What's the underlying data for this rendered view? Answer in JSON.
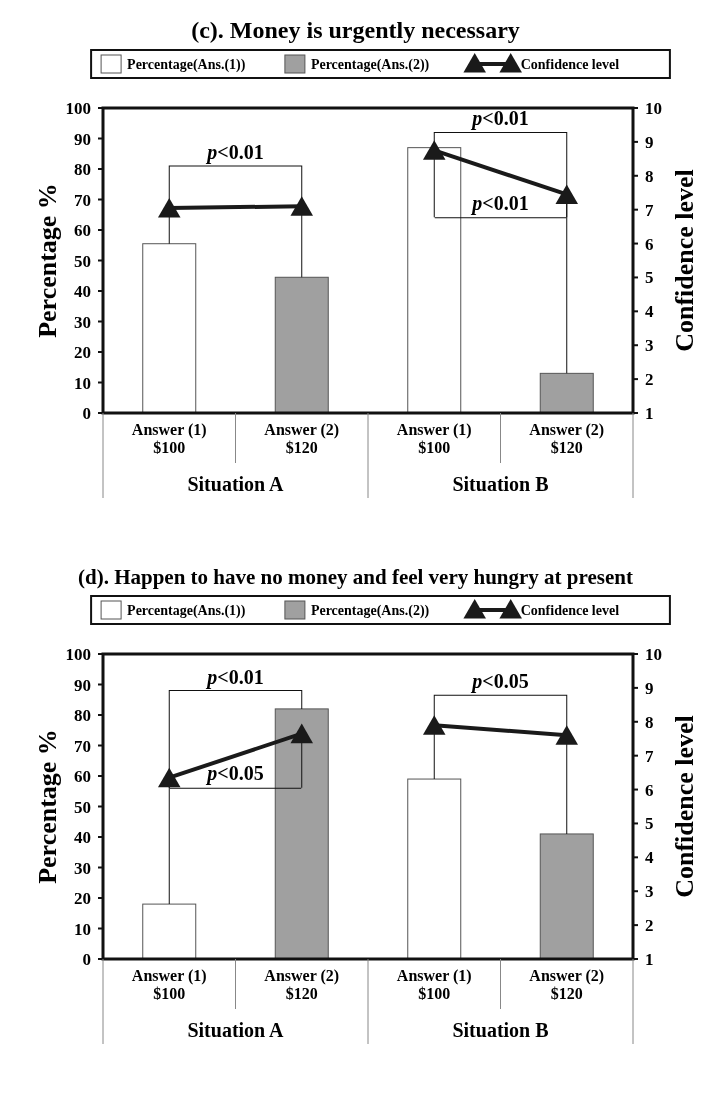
{
  "chart_data": [
    {
      "type": "bar",
      "title": "(c). Money is urgently necessary",
      "categories": [
        "Answer (1)\n$100",
        "Answer (2)\n$120",
        "Answer (1)\n$100",
        "Answer (2)\n$120"
      ],
      "series": [
        {
          "name": "Percentage(Ans.(1))",
          "color": "#ffffff",
          "values": [
            55.5,
            null,
            87,
            null
          ]
        },
        {
          "name": "Percentage(Ans.(2))",
          "color": "#a0a0a0",
          "values": [
            null,
            44.5,
            null,
            13
          ]
        },
        {
          "name": "Confidence level",
          "type": "line",
          "axis": "y2",
          "color": "#1a1a1a",
          "marker": "triangle",
          "values": [
            7.05,
            7.1,
            null,
            null
          ]
        },
        {
          "type": "line",
          "axis": "y2",
          "color": "#1a1a1a",
          "marker": "triangle",
          "values": [
            null,
            null,
            8.75,
            7.45
          ]
        }
      ],
      "ylabel": "Percentage %",
      "y2label": "Confidence level",
      "ylim": [
        0,
        100
      ],
      "yticks": [
        0,
        10,
        20,
        30,
        40,
        50,
        60,
        70,
        80,
        90,
        100
      ],
      "y2lim": [
        1,
        10
      ],
      "y2ticks": [
        1,
        2,
        3,
        4,
        5,
        6,
        7,
        8,
        9,
        10
      ],
      "legend": "top",
      "grid": false,
      "annotations": [
        "Situation A",
        "Situation B",
        "p<0.01",
        "p<0.01",
        "p<0.01"
      ]
    },
    {
      "type": "bar",
      "title": "(d). Happen to have no money and feel very hungry at present",
      "categories": [
        "Answer (1)\n$100",
        "Answer (2)\n$120",
        "Answer (1)\n$100",
        "Answer (2)\n$120"
      ],
      "series": [
        {
          "name": "Percentage(Ans.(1))",
          "color": "#ffffff",
          "values": [
            18,
            null,
            59,
            null
          ]
        },
        {
          "name": "Percentage(Ans.(2))",
          "color": "#a0a0a0",
          "values": [
            null,
            82,
            null,
            41
          ]
        },
        {
          "name": "Confidence level",
          "type": "line",
          "axis": "y2",
          "color": "#1a1a1a",
          "marker": "triangle",
          "values": [
            6.35,
            7.65,
            null,
            null
          ]
        },
        {
          "type": "line",
          "axis": "y2",
          "color": "#1a1a1a",
          "marker": "triangle",
          "values": [
            null,
            null,
            7.9,
            7.6
          ]
        }
      ],
      "ylabel": "Percentage %",
      "y2label": "Confidence level",
      "ylim": [
        0,
        100
      ],
      "yticks": [
        0,
        10,
        20,
        30,
        40,
        50,
        60,
        70,
        80,
        90,
        100
      ],
      "y2lim": [
        1,
        10
      ],
      "y2ticks": [
        1,
        2,
        3,
        4,
        5,
        6,
        7,
        8,
        9,
        10
      ],
      "legend": "top",
      "grid": false,
      "annotations": [
        "Situation A",
        "Situation B",
        "p<0.01",
        "p<0.05",
        "p<0.05"
      ]
    }
  ]
}
